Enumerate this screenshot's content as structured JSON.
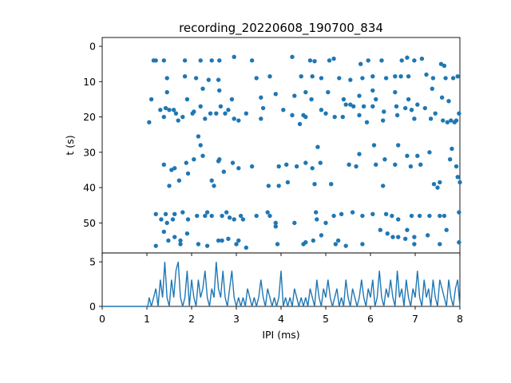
{
  "chart_data": [
    {
      "type": "scatter",
      "title": "recording_20220608_190700_834",
      "xlabel": "",
      "ylabel": "t (s)",
      "xlim": [
        0,
        8
      ],
      "ylim": [
        58.5,
        -2.5
      ],
      "y_inverted": true,
      "yticks": [
        0,
        10,
        20,
        30,
        40,
        50
      ],
      "xtick_labels_visible": false,
      "color": "#1f77b4",
      "grid": false,
      "points": [
        [
          1.15,
          4
        ],
        [
          1.2,
          4
        ],
        [
          1.38,
          4
        ],
        [
          1.85,
          4
        ],
        [
          2.2,
          4
        ],
        [
          2.45,
          4
        ],
        [
          2.62,
          4
        ],
        [
          2.95,
          3
        ],
        [
          3.35,
          4
        ],
        [
          4.25,
          3
        ],
        [
          4.65,
          4
        ],
        [
          4.75,
          4.2
        ],
        [
          5.08,
          4
        ],
        [
          5.18,
          3.5
        ],
        [
          5.78,
          5
        ],
        [
          5.95,
          4
        ],
        [
          6.25,
          4
        ],
        [
          6.7,
          4
        ],
        [
          6.82,
          3.2
        ],
        [
          6.98,
          4
        ],
        [
          7.15,
          3.5
        ],
        [
          7.58,
          5
        ],
        [
          7.65,
          5.5
        ],
        [
          1.45,
          9
        ],
        [
          1.85,
          8.5
        ],
        [
          2.1,
          9
        ],
        [
          2.38,
          9.5
        ],
        [
          2.6,
          9.5
        ],
        [
          3.45,
          9
        ],
        [
          3.75,
          8.5
        ],
        [
          4.45,
          8.5
        ],
        [
          4.7,
          8.5
        ],
        [
          4.9,
          9
        ],
        [
          5.3,
          9
        ],
        [
          5.55,
          9.5
        ],
        [
          5.82,
          9
        ],
        [
          6.05,
          8.5
        ],
        [
          6.35,
          9
        ],
        [
          6.55,
          8.5
        ],
        [
          6.68,
          8.5
        ],
        [
          6.85,
          8.5
        ],
        [
          7.25,
          8
        ],
        [
          7.4,
          9
        ],
        [
          7.68,
          9
        ],
        [
          7.85,
          9
        ],
        [
          7.95,
          8.5
        ],
        [
          1.1,
          15
        ],
        [
          1.45,
          13
        ],
        [
          1.9,
          15
        ],
        [
          2.25,
          12
        ],
        [
          2.62,
          12.5
        ],
        [
          2.9,
          15
        ],
        [
          3.55,
          14.5
        ],
        [
          3.88,
          13.5
        ],
        [
          4.3,
          14
        ],
        [
          4.55,
          13
        ],
        [
          4.68,
          15
        ],
        [
          5.05,
          13
        ],
        [
          5.4,
          15
        ],
        [
          5.55,
          16.5
        ],
        [
          5.75,
          14
        ],
        [
          6.05,
          12.5
        ],
        [
          6.12,
          15
        ],
        [
          6.55,
          13
        ],
        [
          6.85,
          15
        ],
        [
          7.05,
          16.5
        ],
        [
          7.38,
          12
        ],
        [
          7.6,
          14.5
        ],
        [
          7.75,
          15.5
        ],
        [
          1.05,
          21.5
        ],
        [
          1.3,
          18
        ],
        [
          1.42,
          17.5
        ],
        [
          1.5,
          18
        ],
        [
          1.65,
          19
        ],
        [
          1.8,
          20
        ],
        [
          2.05,
          18.5
        ],
        [
          2.2,
          17
        ],
        [
          2.42,
          19
        ],
        [
          2.65,
          17
        ],
        [
          2.75,
          19
        ],
        [
          2.95,
          20.5
        ],
        [
          3.22,
          19
        ],
        [
          3.6,
          17.5
        ],
        [
          4.05,
          18
        ],
        [
          4.25,
          19.5
        ],
        [
          4.5,
          19.5
        ],
        [
          5.0,
          19
        ],
        [
          5.2,
          20
        ],
        [
          5.45,
          16.5
        ],
        [
          5.62,
          17
        ],
        [
          5.85,
          17
        ],
        [
          6.05,
          17
        ],
        [
          6.3,
          18.5
        ],
        [
          6.58,
          17
        ],
        [
          6.78,
          17.5
        ],
        [
          6.98,
          20.5
        ],
        [
          7.22,
          17.5
        ],
        [
          7.45,
          19
        ],
        [
          7.8,
          21
        ],
        [
          7.92,
          21
        ],
        [
          7.98,
          19
        ],
        [
          1.38,
          20
        ],
        [
          1.6,
          18
        ],
        [
          1.7,
          21
        ],
        [
          2.02,
          19
        ],
        [
          2.3,
          20.5
        ],
        [
          2.55,
          19
        ],
        [
          2.82,
          18
        ],
        [
          3.05,
          21
        ],
        [
          3.55,
          20.5
        ],
        [
          4.42,
          22
        ],
        [
          4.55,
          20
        ],
        [
          4.9,
          18
        ],
        [
          5.38,
          20
        ],
        [
          5.75,
          19.5
        ],
        [
          5.92,
          21.5
        ],
        [
          6.28,
          21
        ],
        [
          6.6,
          19.5
        ],
        [
          6.92,
          18
        ],
        [
          7.35,
          20.5
        ],
        [
          7.62,
          21
        ],
        [
          7.72,
          21.5
        ],
        [
          7.88,
          21.5
        ],
        [
          1.38,
          33.5
        ],
        [
          1.5,
          39.5
        ],
        [
          1.55,
          35
        ],
        [
          1.72,
          38
        ],
        [
          1.92,
          36
        ],
        [
          2.05,
          32
        ],
        [
          2.2,
          28
        ],
        [
          2.45,
          38
        ],
        [
          2.5,
          39.5
        ],
        [
          2.6,
          32.5
        ],
        [
          2.72,
          35.5
        ],
        [
          2.92,
          33
        ],
        [
          3.35,
          34
        ],
        [
          3.72,
          39.5
        ],
        [
          3.95,
          34
        ],
        [
          4.15,
          38.5
        ],
        [
          4.35,
          34
        ],
        [
          4.75,
          39
        ],
        [
          4.82,
          28.5
        ],
        [
          4.88,
          33
        ],
        [
          5.12,
          39
        ],
        [
          5.52,
          33.5
        ],
        [
          5.75,
          30.5
        ],
        [
          6.12,
          33.5
        ],
        [
          6.28,
          39.5
        ],
        [
          6.55,
          33.5
        ],
        [
          6.9,
          34
        ],
        [
          7.05,
          31
        ],
        [
          7.32,
          30
        ],
        [
          7.5,
          40
        ],
        [
          7.78,
          32
        ],
        [
          7.92,
          34
        ],
        [
          8.0,
          38.5
        ],
        [
          1.62,
          34.5
        ],
        [
          1.88,
          33
        ],
        [
          2.15,
          25.5
        ],
        [
          2.25,
          31
        ],
        [
          2.62,
          32
        ],
        [
          3.05,
          34.5
        ],
        [
          3.95,
          39.5
        ],
        [
          4.12,
          33.5
        ],
        [
          4.55,
          33
        ],
        [
          4.7,
          34.5
        ],
        [
          5.68,
          34
        ],
        [
          6.08,
          28
        ],
        [
          6.32,
          32
        ],
        [
          6.62,
          28
        ],
        [
          6.82,
          31
        ],
        [
          7.12,
          33.5
        ],
        [
          7.42,
          39
        ],
        [
          7.55,
          38.5
        ],
        [
          7.82,
          29
        ],
        [
          7.95,
          37
        ],
        [
          1.2,
          47.5
        ],
        [
          1.32,
          49
        ],
        [
          1.42,
          47.5
        ],
        [
          1.45,
          50
        ],
        [
          1.58,
          49
        ],
        [
          1.62,
          47.5
        ],
        [
          1.92,
          49
        ],
        [
          2.12,
          48
        ],
        [
          2.3,
          48
        ],
        [
          2.45,
          48
        ],
        [
          2.68,
          48
        ],
        [
          2.85,
          48.5
        ],
        [
          2.95,
          49
        ],
        [
          3.1,
          48
        ],
        [
          3.45,
          48
        ],
        [
          3.75,
          48
        ],
        [
          3.88,
          50
        ],
        [
          4.78,
          47
        ],
        [
          4.8,
          49
        ],
        [
          5.18,
          48
        ],
        [
          5.35,
          47.5
        ],
        [
          5.82,
          48
        ],
        [
          6.05,
          47.5
        ],
        [
          6.48,
          48
        ],
        [
          6.62,
          49
        ],
        [
          6.92,
          48
        ],
        [
          7.32,
          48
        ],
        [
          7.65,
          48
        ],
        [
          7.98,
          47
        ],
        [
          1.2,
          56.5
        ],
        [
          1.38,
          52.5
        ],
        [
          1.48,
          55
        ],
        [
          1.62,
          54
        ],
        [
          1.75,
          55
        ],
        [
          1.9,
          53
        ],
        [
          2.15,
          56
        ],
        [
          2.35,
          56.5
        ],
        [
          2.68,
          55
        ],
        [
          2.82,
          54.5
        ],
        [
          3.05,
          55
        ],
        [
          3.22,
          57
        ],
        [
          3.92,
          56
        ],
        [
          4.5,
          56
        ],
        [
          4.55,
          55.5
        ],
        [
          4.9,
          53.5
        ],
        [
          5.28,
          55
        ],
        [
          5.45,
          56.5
        ],
        [
          5.82,
          56
        ],
        [
          6.22,
          52
        ],
        [
          6.5,
          54
        ],
        [
          6.62,
          54
        ],
        [
          6.78,
          54.5
        ],
        [
          6.98,
          56
        ],
        [
          7.55,
          56
        ],
        [
          7.98,
          55.5
        ],
        [
          1.75,
          56
        ],
        [
          2.6,
          55
        ],
        [
          3.0,
          56
        ],
        [
          3.88,
          51
        ],
        [
          4.72,
          55
        ],
        [
          5.22,
          56
        ],
        [
          6.38,
          53
        ],
        [
          6.98,
          54
        ],
        [
          6.82,
          52
        ],
        [
          7.28,
          53.5
        ],
        [
          7.7,
          52
        ],
        [
          7.55,
          48
        ],
        [
          7.1,
          48
        ],
        [
          6.35,
          47.5
        ],
        [
          5.6,
          47
        ],
        [
          5.0,
          50
        ],
        [
          4.3,
          50
        ],
        [
          3.7,
          47
        ],
        [
          3.15,
          49
        ],
        [
          2.78,
          47
        ],
        [
          2.35,
          47
        ],
        [
          1.8,
          47
        ]
      ]
    },
    {
      "type": "line",
      "xlabel": "IPI (ms)",
      "ylabel": "",
      "xlim": [
        0,
        8
      ],
      "ylim": [
        0,
        6
      ],
      "xticks": [
        0,
        1,
        2,
        3,
        4,
        5,
        6,
        7,
        8
      ],
      "yticks": [
        0,
        5
      ],
      "color": "#1f77b4",
      "grid": false,
      "x": [
        0,
        1.02,
        1.05,
        1.1,
        1.15,
        1.2,
        1.25,
        1.3,
        1.35,
        1.4,
        1.45,
        1.5,
        1.55,
        1.6,
        1.65,
        1.7,
        1.75,
        1.8,
        1.85,
        1.9,
        1.95,
        2.0,
        2.05,
        2.1,
        2.15,
        2.2,
        2.25,
        2.3,
        2.35,
        2.4,
        2.45,
        2.5,
        2.55,
        2.6,
        2.65,
        2.7,
        2.75,
        2.8,
        2.85,
        2.9,
        2.95,
        3.0,
        3.05,
        3.1,
        3.15,
        3.2,
        3.25,
        3.3,
        3.35,
        3.4,
        3.45,
        3.5,
        3.55,
        3.6,
        3.65,
        3.7,
        3.75,
        3.8,
        3.85,
        3.9,
        3.95,
        4.0,
        4.05,
        4.1,
        4.15,
        4.2,
        4.25,
        4.3,
        4.35,
        4.4,
        4.45,
        4.5,
        4.55,
        4.6,
        4.65,
        4.7,
        4.75,
        4.8,
        4.85,
        4.9,
        4.95,
        5.0,
        5.05,
        5.1,
        5.15,
        5.2,
        5.25,
        5.3,
        5.35,
        5.4,
        5.45,
        5.5,
        5.55,
        5.6,
        5.65,
        5.7,
        5.75,
        5.8,
        5.85,
        5.9,
        5.95,
        6.0,
        6.05,
        6.1,
        6.15,
        6.2,
        6.25,
        6.3,
        6.35,
        6.4,
        6.45,
        6.5,
        6.55,
        6.6,
        6.65,
        6.7,
        6.75,
        6.8,
        6.85,
        6.9,
        6.95,
        7.0,
        7.05,
        7.1,
        7.15,
        7.2,
        7.25,
        7.3,
        7.35,
        7.4,
        7.45,
        7.5,
        7.55,
        7.6,
        7.65,
        7.7,
        7.75,
        7.8,
        7.85,
        7.9,
        7.95,
        8.0
      ],
      "y": [
        0,
        0,
        1,
        0,
        1,
        2,
        0,
        3,
        1,
        5,
        1,
        0,
        3,
        1,
        4,
        5,
        1,
        0,
        1,
        4,
        0,
        3,
        1,
        0,
        3,
        1,
        2,
        4,
        1,
        0,
        2,
        1,
        5,
        2,
        1,
        4,
        1,
        0,
        2,
        4,
        1,
        0,
        1,
        0,
        1,
        0,
        2,
        1,
        0,
        1,
        0,
        1,
        3,
        1,
        0,
        2,
        1,
        0,
        1,
        0,
        1,
        4,
        0,
        1,
        0,
        1,
        0,
        2,
        1,
        0,
        1,
        0,
        1,
        0,
        2,
        1,
        0,
        3,
        1,
        0,
        2,
        1,
        3,
        1,
        0,
        1,
        2,
        0,
        1,
        0,
        3,
        1,
        0,
        2,
        1,
        0,
        1,
        3,
        1,
        0,
        2,
        1,
        3,
        0,
        1,
        4,
        1,
        0,
        2,
        1,
        3,
        1,
        0,
        4,
        1,
        2,
        0,
        3,
        1,
        0,
        2,
        1,
        4,
        1,
        0,
        3,
        1,
        2,
        0,
        3,
        1,
        0,
        3,
        2,
        1,
        0,
        3,
        1,
        0,
        2,
        3,
        0
      ]
    }
  ]
}
